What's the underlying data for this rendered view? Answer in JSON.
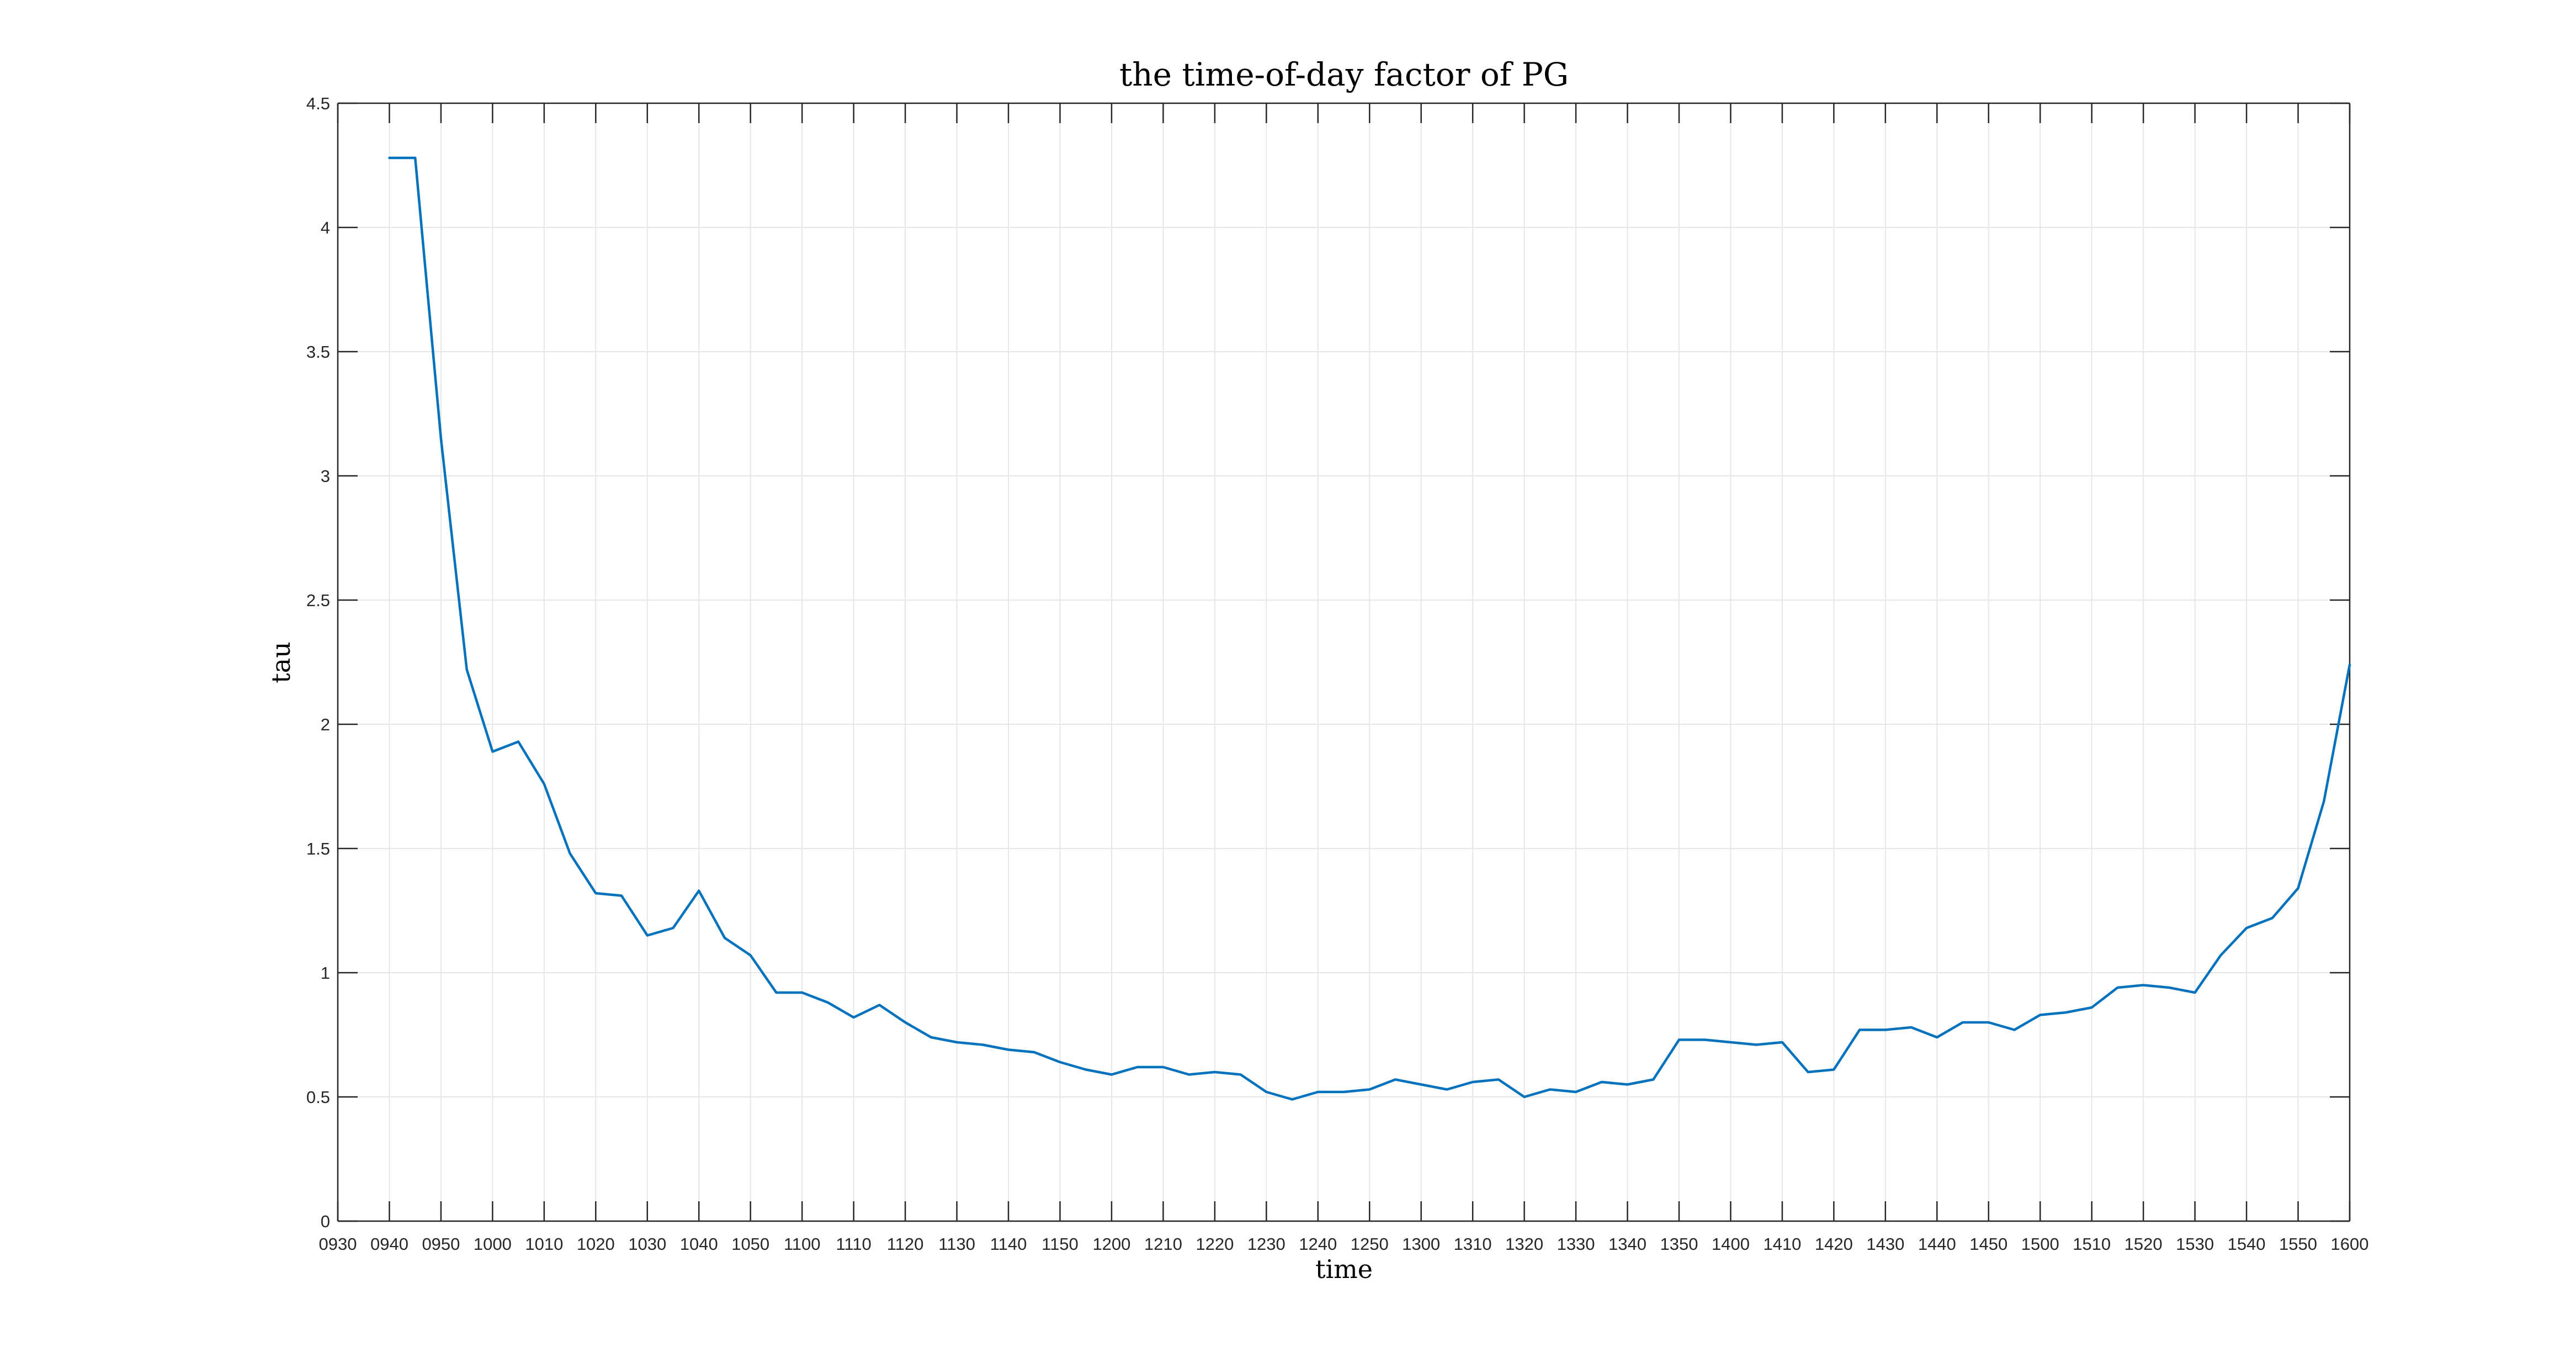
{
  "chart_data": {
    "type": "line",
    "title": "the time-of-day factor of PG",
    "xlabel": "time",
    "ylabel": "tau",
    "ylim": [
      0,
      4.5
    ],
    "yticks": [
      "0",
      "0.5",
      "1",
      "1.5",
      "2",
      "2.5",
      "3",
      "3.5",
      "4",
      "4.5"
    ],
    "xtick_labels": [
      "0930",
      "0940",
      "0950",
      "1000",
      "1010",
      "1020",
      "1030",
      "1040",
      "1050",
      "1100",
      "1110",
      "1120",
      "1130",
      "1140",
      "1150",
      "1200",
      "1210",
      "1220",
      "1230",
      "1240",
      "1250",
      "1300",
      "1310",
      "1320",
      "1330",
      "1340",
      "1350",
      "1400",
      "1410",
      "1420",
      "1430",
      "1440",
      "1450",
      "1500",
      "1510",
      "1520",
      "1530",
      "1540",
      "1550",
      "1600"
    ],
    "grid": true,
    "colors": {
      "series": "#0072bd",
      "grid": "#e6e6e6",
      "axis": "#262626"
    },
    "series": [
      {
        "x": [
          "0940",
          "0945",
          "0950",
          "0955",
          "1000",
          "1005",
          "1010",
          "1015",
          "1020",
          "1025",
          "1030",
          "1035",
          "1040",
          "1045",
          "1050",
          "1055",
          "1100",
          "1105",
          "1110",
          "1115",
          "1120",
          "1125",
          "1130",
          "1135",
          "1140",
          "1145",
          "1150",
          "1155",
          "1200",
          "1205",
          "1210",
          "1215",
          "1220",
          "1225",
          "1230",
          "1235",
          "1240",
          "1245",
          "1250",
          "1255",
          "1300",
          "1305",
          "1310",
          "1315",
          "1320",
          "1325",
          "1330",
          "1335",
          "1340",
          "1345",
          "1350",
          "1355",
          "1400",
          "1405",
          "1410",
          "1415",
          "1420",
          "1425",
          "1430",
          "1435",
          "1440",
          "1445",
          "1450",
          "1455",
          "1500",
          "1505",
          "1510",
          "1515",
          "1520",
          "1525",
          "1530",
          "1535",
          "1540",
          "1545",
          "1550",
          "1555",
          "1600"
        ],
        "values": [
          4.28,
          4.28,
          3.15,
          2.22,
          1.89,
          1.93,
          1.76,
          1.48,
          1.32,
          1.31,
          1.15,
          1.18,
          1.33,
          1.14,
          1.07,
          0.92,
          0.92,
          0.88,
          0.82,
          0.87,
          0.8,
          0.74,
          0.72,
          0.71,
          0.69,
          0.68,
          0.64,
          0.61,
          0.59,
          0.62,
          0.62,
          0.59,
          0.6,
          0.59,
          0.52,
          0.49,
          0.52,
          0.52,
          0.53,
          0.57,
          0.55,
          0.53,
          0.56,
          0.57,
          0.5,
          0.53,
          0.52,
          0.56,
          0.55,
          0.57,
          0.73,
          0.73,
          0.72,
          0.71,
          0.72,
          0.6,
          0.61,
          0.77,
          0.77,
          0.78,
          0.74,
          0.8,
          0.8,
          0.77,
          0.83,
          0.84,
          0.86,
          0.94,
          0.95,
          0.94,
          0.92,
          1.07,
          1.18,
          1.22,
          1.34,
          1.69,
          2.24
        ]
      }
    ]
  }
}
